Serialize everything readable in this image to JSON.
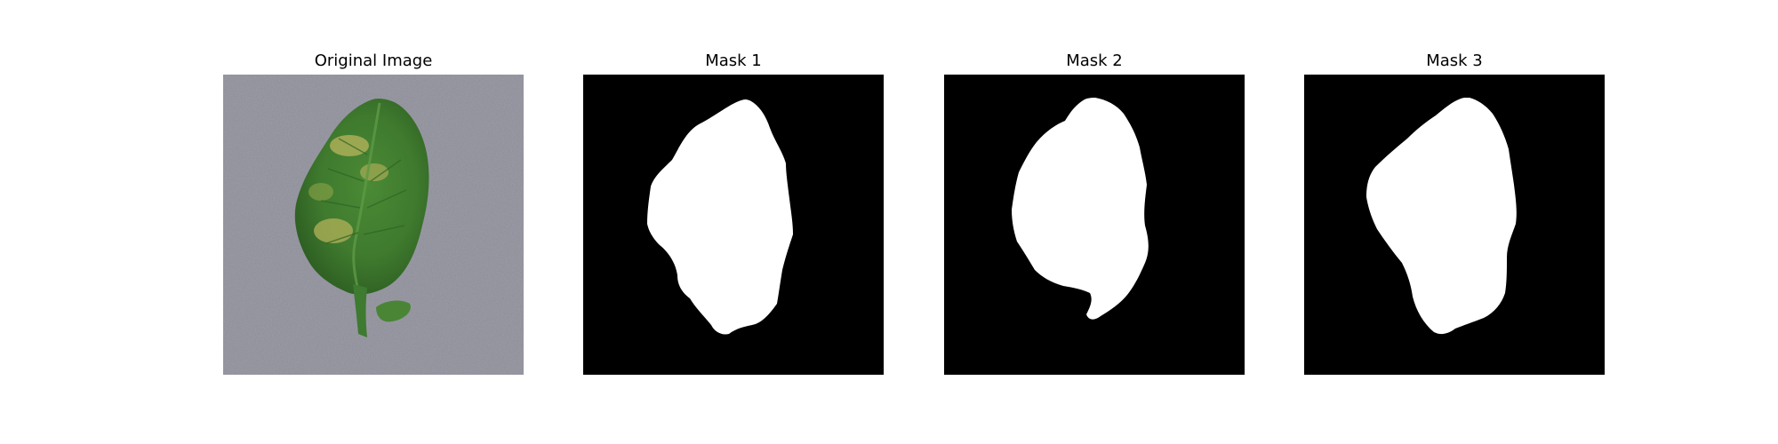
{
  "panels": [
    {
      "title": "Original Image"
    },
    {
      "title": "Mask 1"
    },
    {
      "title": "Mask 2"
    },
    {
      "title": "Mask 3"
    }
  ],
  "colors": {
    "background": "#ffffff",
    "leaf_surface": "#8a8a96",
    "leaf_green": "#3f7a2e",
    "leaf_dark_green": "#2d5e22",
    "leaf_blight_yellow": "#b3b25a",
    "mask_background": "#000000",
    "mask_foreground": "#ffffff"
  }
}
